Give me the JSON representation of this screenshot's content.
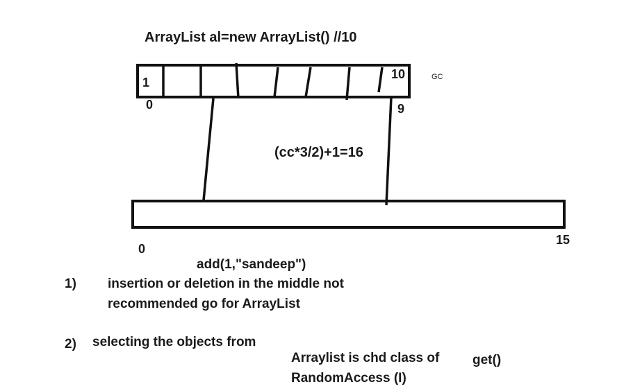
{
  "title": "ArrayList al=new ArrayList()    //10",
  "gc_label": "GC",
  "old_array": {
    "first_value": "1",
    "start_index": "0",
    "capacity_label": "10",
    "end_index": "9"
  },
  "growth_formula": "(cc*3/2)+1=16",
  "new_array": {
    "start_index": "0",
    "end_index": "15"
  },
  "add_call": "add(1,\"sandeep\")",
  "notes": [
    {
      "number": "1)",
      "lines": [
        "insertion or deletion in the middle not",
        "recommended go for ArrayList"
      ]
    },
    {
      "number": "2)",
      "lines": [
        "selecting the objects from"
      ]
    }
  ],
  "random_access": [
    "Arraylist is chd class of",
    "RandomAccess (I)"
  ],
  "get_method": "get()",
  "ink_color": "#111111"
}
